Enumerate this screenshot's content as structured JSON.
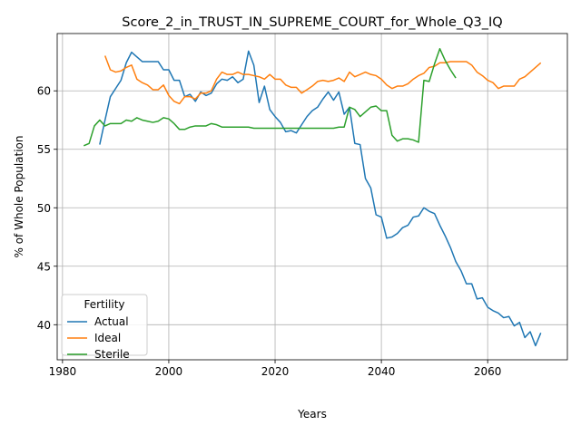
{
  "chart_data": {
    "type": "line",
    "title": "Score_2_in_TRUST_IN_SUPREME_COURT_for_Whole_Q3_IQ",
    "xlabel": "Years",
    "ylabel": "% of Whole Population",
    "xlim": [
      1979,
      2075
    ],
    "ylim": [
      37,
      64.9
    ],
    "x_ticks": [
      1980,
      2000,
      2020,
      2040,
      2060
    ],
    "y_ticks": [
      40,
      45,
      50,
      55,
      60
    ],
    "grid": true,
    "legend": {
      "title": "Fertility",
      "placement": "lower-left"
    },
    "series": [
      {
        "name": "Actual",
        "color": "#1f77b4",
        "points": [
          [
            1987,
            55.4
          ],
          [
            1988,
            57.5
          ],
          [
            1989,
            59.5
          ],
          [
            1990,
            60.2
          ],
          [
            1991,
            60.9
          ],
          [
            1992,
            62.4
          ],
          [
            1993,
            63.3
          ],
          [
            1994,
            62.9
          ],
          [
            1995,
            62.5
          ],
          [
            1996,
            62.5
          ],
          [
            1997,
            62.5
          ],
          [
            1998,
            62.5
          ],
          [
            1999,
            61.8
          ],
          [
            2000,
            61.8
          ],
          [
            2001,
            60.9
          ],
          [
            2002,
            60.9
          ],
          [
            2003,
            59.5
          ],
          [
            2004,
            59.7
          ],
          [
            2005,
            59.1
          ],
          [
            2006,
            59.9
          ],
          [
            2007,
            59.6
          ],
          [
            2008,
            59.8
          ],
          [
            2009,
            60.6
          ],
          [
            2010,
            61.0
          ],
          [
            2011,
            60.9
          ],
          [
            2012,
            61.2
          ],
          [
            2013,
            60.7
          ],
          [
            2014,
            61.0
          ],
          [
            2015,
            63.4
          ],
          [
            2016,
            62.2
          ],
          [
            2017,
            59.0
          ],
          [
            2018,
            60.4
          ],
          [
            2019,
            58.4
          ],
          [
            2020,
            57.8
          ],
          [
            2021,
            57.3
          ],
          [
            2022,
            56.5
          ],
          [
            2023,
            56.6
          ],
          [
            2024,
            56.4
          ],
          [
            2025,
            57.1
          ],
          [
            2026,
            57.8
          ],
          [
            2027,
            58.3
          ],
          [
            2028,
            58.6
          ],
          [
            2029,
            59.3
          ],
          [
            2030,
            59.9
          ],
          [
            2031,
            59.2
          ],
          [
            2032,
            59.9
          ],
          [
            2033,
            58.0
          ],
          [
            2034,
            58.6
          ],
          [
            2035,
            55.5
          ],
          [
            2036,
            55.4
          ],
          [
            2037,
            52.5
          ],
          [
            2038,
            51.7
          ],
          [
            2039,
            49.4
          ],
          [
            2040,
            49.2
          ],
          [
            2041,
            47.4
          ],
          [
            2042,
            47.5
          ],
          [
            2043,
            47.8
          ],
          [
            2044,
            48.3
          ],
          [
            2045,
            48.5
          ],
          [
            2046,
            49.2
          ],
          [
            2047,
            49.3
          ],
          [
            2048,
            50.0
          ],
          [
            2049,
            49.7
          ],
          [
            2050,
            49.5
          ],
          [
            2051,
            48.5
          ],
          [
            2052,
            47.6
          ],
          [
            2053,
            46.6
          ],
          [
            2054,
            45.4
          ],
          [
            2055,
            44.6
          ],
          [
            2056,
            43.5
          ],
          [
            2057,
            43.5
          ],
          [
            2058,
            42.2
          ],
          [
            2059,
            42.3
          ],
          [
            2060,
            41.5
          ],
          [
            2061,
            41.2
          ],
          [
            2062,
            41.0
          ],
          [
            2063,
            40.6
          ],
          [
            2064,
            40.7
          ],
          [
            2065,
            39.9
          ],
          [
            2066,
            40.2
          ],
          [
            2067,
            38.9
          ],
          [
            2068,
            39.4
          ],
          [
            2069,
            38.2
          ],
          [
            2070,
            39.3
          ]
        ]
      },
      {
        "name": "Ideal",
        "color": "#ff7f0e",
        "points": [
          [
            1988,
            63.0
          ],
          [
            1989,
            61.8
          ],
          [
            1990,
            61.6
          ],
          [
            1991,
            61.7
          ],
          [
            1992,
            62.0
          ],
          [
            1993,
            62.2
          ],
          [
            1994,
            61.0
          ],
          [
            1995,
            60.7
          ],
          [
            1996,
            60.5
          ],
          [
            1997,
            60.1
          ],
          [
            1998,
            60.1
          ],
          [
            1999,
            60.5
          ],
          [
            2000,
            59.6
          ],
          [
            2001,
            59.1
          ],
          [
            2002,
            58.9
          ],
          [
            2003,
            59.5
          ],
          [
            2004,
            59.5
          ],
          [
            2005,
            59.3
          ],
          [
            2006,
            59.8
          ],
          [
            2007,
            59.8
          ],
          [
            2008,
            60.0
          ],
          [
            2009,
            61.0
          ],
          [
            2010,
            61.6
          ],
          [
            2011,
            61.4
          ],
          [
            2012,
            61.4
          ],
          [
            2013,
            61.6
          ],
          [
            2014,
            61.4
          ],
          [
            2015,
            61.4
          ],
          [
            2016,
            61.3
          ],
          [
            2017,
            61.2
          ],
          [
            2018,
            61.0
          ],
          [
            2019,
            61.4
          ],
          [
            2020,
            61.0
          ],
          [
            2021,
            61.0
          ],
          [
            2022,
            60.5
          ],
          [
            2023,
            60.3
          ],
          [
            2024,
            60.3
          ],
          [
            2025,
            59.8
          ],
          [
            2026,
            60.1
          ],
          [
            2027,
            60.4
          ],
          [
            2028,
            60.8
          ],
          [
            2029,
            60.9
          ],
          [
            2030,
            60.8
          ],
          [
            2031,
            60.9
          ],
          [
            2032,
            61.1
          ],
          [
            2033,
            60.8
          ],
          [
            2034,
            61.6
          ],
          [
            2035,
            61.2
          ],
          [
            2036,
            61.4
          ],
          [
            2037,
            61.6
          ],
          [
            2038,
            61.4
          ],
          [
            2039,
            61.3
          ],
          [
            2040,
            61.0
          ],
          [
            2041,
            60.5
          ],
          [
            2042,
            60.2
          ],
          [
            2043,
            60.4
          ],
          [
            2044,
            60.4
          ],
          [
            2045,
            60.6
          ],
          [
            2046,
            61.0
          ],
          [
            2047,
            61.3
          ],
          [
            2048,
            61.5
          ],
          [
            2049,
            62.0
          ],
          [
            2050,
            62.1
          ],
          [
            2051,
            62.4
          ],
          [
            2052,
            62.4
          ],
          [
            2053,
            62.5
          ],
          [
            2054,
            62.5
          ],
          [
            2055,
            62.5
          ],
          [
            2056,
            62.5
          ],
          [
            2057,
            62.2
          ],
          [
            2058,
            61.6
          ],
          [
            2059,
            61.3
          ],
          [
            2060,
            60.9
          ],
          [
            2061,
            60.7
          ],
          [
            2062,
            60.2
          ],
          [
            2063,
            60.4
          ],
          [
            2064,
            60.4
          ],
          [
            2065,
            60.4
          ],
          [
            2066,
            61.0
          ],
          [
            2067,
            61.2
          ],
          [
            2068,
            61.6
          ],
          [
            2069,
            62.0
          ],
          [
            2070,
            62.4
          ]
        ]
      },
      {
        "name": "Sterile",
        "color": "#2ca02c",
        "points": [
          [
            1984,
            55.3
          ],
          [
            1985,
            55.5
          ],
          [
            1986,
            57.0
          ],
          [
            1987,
            57.5
          ],
          [
            1988,
            57.0
          ],
          [
            1989,
            57.2
          ],
          [
            1990,
            57.2
          ],
          [
            1991,
            57.2
          ],
          [
            1992,
            57.5
          ],
          [
            1993,
            57.4
          ],
          [
            1994,
            57.7
          ],
          [
            1995,
            57.5
          ],
          [
            1996,
            57.4
          ],
          [
            1997,
            57.3
          ],
          [
            1998,
            57.4
          ],
          [
            1999,
            57.7
          ],
          [
            2000,
            57.6
          ],
          [
            2001,
            57.2
          ],
          [
            2002,
            56.7
          ],
          [
            2003,
            56.7
          ],
          [
            2004,
            56.9
          ],
          [
            2005,
            57.0
          ],
          [
            2006,
            57.0
          ],
          [
            2007,
            57.0
          ],
          [
            2008,
            57.2
          ],
          [
            2009,
            57.1
          ],
          [
            2010,
            56.9
          ],
          [
            2011,
            56.9
          ],
          [
            2012,
            56.9
          ],
          [
            2013,
            56.9
          ],
          [
            2014,
            56.9
          ],
          [
            2015,
            56.9
          ],
          [
            2016,
            56.8
          ],
          [
            2017,
            56.8
          ],
          [
            2018,
            56.8
          ],
          [
            2019,
            56.8
          ],
          [
            2020,
            56.8
          ],
          [
            2021,
            56.8
          ],
          [
            2022,
            56.8
          ],
          [
            2023,
            56.8
          ],
          [
            2024,
            56.8
          ],
          [
            2025,
            56.8
          ],
          [
            2026,
            56.8
          ],
          [
            2027,
            56.8
          ],
          [
            2028,
            56.8
          ],
          [
            2029,
            56.8
          ],
          [
            2030,
            56.8
          ],
          [
            2031,
            56.8
          ],
          [
            2032,
            56.9
          ],
          [
            2033,
            56.9
          ],
          [
            2034,
            58.6
          ],
          [
            2035,
            58.4
          ],
          [
            2036,
            57.8
          ],
          [
            2037,
            58.2
          ],
          [
            2038,
            58.6
          ],
          [
            2039,
            58.7
          ],
          [
            2040,
            58.3
          ],
          [
            2041,
            58.3
          ],
          [
            2042,
            56.2
          ],
          [
            2043,
            55.7
          ],
          [
            2044,
            55.9
          ],
          [
            2045,
            55.9
          ],
          [
            2046,
            55.8
          ],
          [
            2047,
            55.6
          ],
          [
            2048,
            60.9
          ],
          [
            2049,
            60.8
          ],
          [
            2050,
            62.3
          ],
          [
            2051,
            63.6
          ],
          [
            2052,
            62.6
          ],
          [
            2053,
            61.8
          ],
          [
            2054,
            61.1
          ]
        ]
      }
    ]
  }
}
